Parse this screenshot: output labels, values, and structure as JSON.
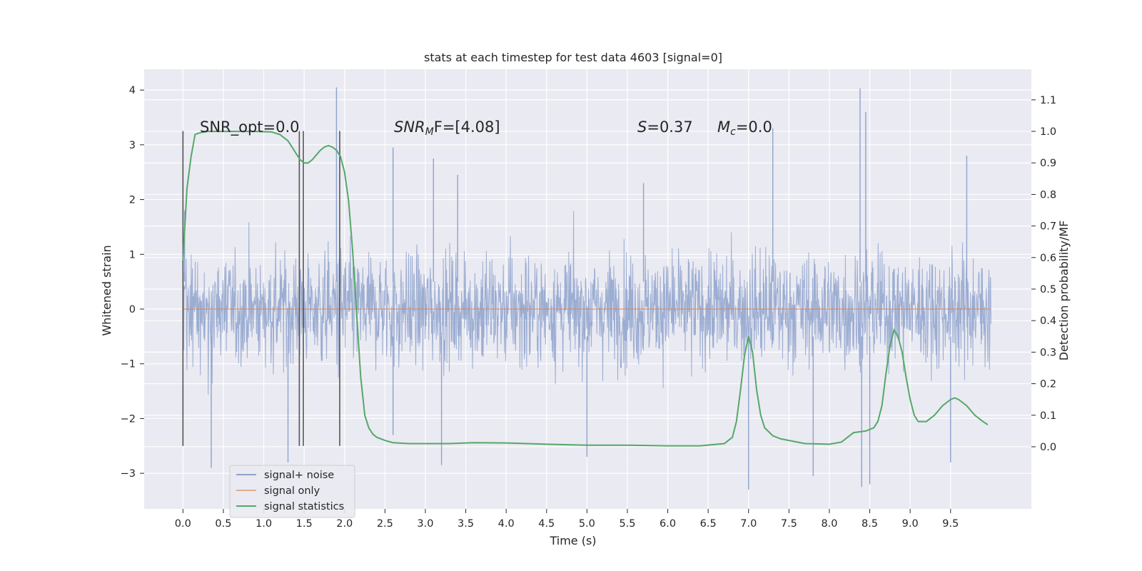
{
  "chart_data": {
    "type": "line",
    "title": "stats at each timestep for test data 4603 [signal=0]",
    "xlabel": "Time (s)",
    "ylabel": "Whitened strain",
    "y2label": "Detection probability/MF",
    "xlim": [
      -0.48,
      10.5
    ],
    "ylim": [
      -3.65,
      4.38
    ],
    "y2lim": [
      -0.197,
      1.197
    ],
    "x_ticks": [
      0.0,
      0.5,
      1.0,
      1.5,
      2.0,
      2.5,
      3.0,
      3.5,
      4.0,
      4.5,
      5.0,
      5.5,
      6.0,
      6.5,
      7.0,
      7.5,
      8.0,
      8.5,
      9.0,
      9.5
    ],
    "y_ticks": [
      -3,
      -2,
      -1,
      0,
      1,
      2,
      3,
      4
    ],
    "y2_ticks": [
      0.0,
      0.1,
      0.2,
      0.3,
      0.4,
      0.5,
      0.6,
      0.7,
      0.8,
      0.9,
      1.0,
      1.1
    ],
    "grid": true,
    "legend_position": "lower-left",
    "annotations": {
      "snr_opt": "SNR_opt=0.0",
      "snr_mf_prefix": "SNR",
      "snr_mf_sub": "M",
      "snr_mf_suffix": "F=[4.08]",
      "s_label": "S",
      "s_value": "=0.37",
      "mc_label": "M",
      "mc_sub": "c",
      "mc_value": "=0.0"
    },
    "vertical_markers": {
      "x": [
        0.0,
        1.44,
        1.49,
        1.94
      ],
      "y_range": [
        -2.5,
        3.25
      ]
    },
    "series": [
      {
        "name": "signal+ noise",
        "color": "#8ea2cd",
        "noise_band": {
          "x_start": 0.0,
          "x_end": 10.0,
          "core_abs": 1.45,
          "peaks_x": [
            0.02,
            1.9,
            2.6,
            3.1,
            3.4,
            5.7,
            7.3,
            8.38,
            8.45,
            9.7
          ],
          "peaks_y": [
            1.8,
            4.05,
            2.95,
            2.75,
            2.45,
            2.3,
            3.3,
            4.03,
            3.6,
            2.8
          ],
          "troughs_x": [
            0.35,
            1.3,
            2.6,
            3.2,
            5.0,
            7.0,
            7.8,
            8.4,
            8.5,
            9.5
          ],
          "troughs_y": [
            -2.9,
            -2.8,
            -2.3,
            -2.85,
            -2.7,
            -3.3,
            -3.05,
            -3.25,
            -3.2,
            -2.8
          ]
        }
      },
      {
        "name": "signal only",
        "color": "#dd8452",
        "x": [
          0.0,
          10.0
        ],
        "y": [
          0.0,
          0.0
        ]
      },
      {
        "name": "signal statistics",
        "color": "#55a868",
        "axis": "right",
        "x": [
          0.0,
          0.05,
          0.1,
          0.15,
          0.2,
          0.3,
          0.5,
          0.7,
          0.9,
          1.1,
          1.2,
          1.3,
          1.35,
          1.4,
          1.45,
          1.5,
          1.55,
          1.6,
          1.65,
          1.7,
          1.75,
          1.8,
          1.85,
          1.9,
          1.95,
          2.0,
          2.05,
          2.1,
          2.15,
          2.2,
          2.25,
          2.3,
          2.35,
          2.4,
          2.5,
          2.6,
          2.8,
          3.0,
          3.3,
          3.6,
          4.0,
          4.5,
          5.0,
          5.5,
          6.0,
          6.4,
          6.7,
          6.8,
          6.85,
          6.9,
          6.95,
          7.0,
          7.05,
          7.1,
          7.15,
          7.2,
          7.3,
          7.4,
          7.5,
          7.7,
          8.0,
          8.15,
          8.3,
          8.45,
          8.55,
          8.6,
          8.65,
          8.7,
          8.75,
          8.8,
          8.85,
          8.9,
          8.95,
          9.0,
          9.05,
          9.1,
          9.2,
          9.3,
          9.4,
          9.5,
          9.55,
          9.6,
          9.7,
          9.8,
          9.9,
          9.96
        ],
        "y": [
          0.59,
          0.82,
          0.92,
          0.99,
          0.995,
          1.0,
          1.0,
          1.0,
          1.0,
          0.998,
          0.99,
          0.97,
          0.95,
          0.93,
          0.91,
          0.9,
          0.9,
          0.91,
          0.925,
          0.94,
          0.95,
          0.955,
          0.95,
          0.94,
          0.92,
          0.87,
          0.78,
          0.62,
          0.42,
          0.22,
          0.1,
          0.06,
          0.04,
          0.03,
          0.02,
          0.013,
          0.01,
          0.01,
          0.01,
          0.013,
          0.012,
          0.008,
          0.005,
          0.005,
          0.003,
          0.003,
          0.01,
          0.03,
          0.08,
          0.18,
          0.29,
          0.35,
          0.3,
          0.18,
          0.1,
          0.06,
          0.035,
          0.025,
          0.02,
          0.01,
          0.008,
          0.015,
          0.045,
          0.05,
          0.06,
          0.08,
          0.13,
          0.23,
          0.32,
          0.37,
          0.35,
          0.3,
          0.22,
          0.15,
          0.1,
          0.08,
          0.08,
          0.1,
          0.13,
          0.15,
          0.155,
          0.15,
          0.13,
          0.1,
          0.08,
          0.07
        ]
      }
    ]
  }
}
